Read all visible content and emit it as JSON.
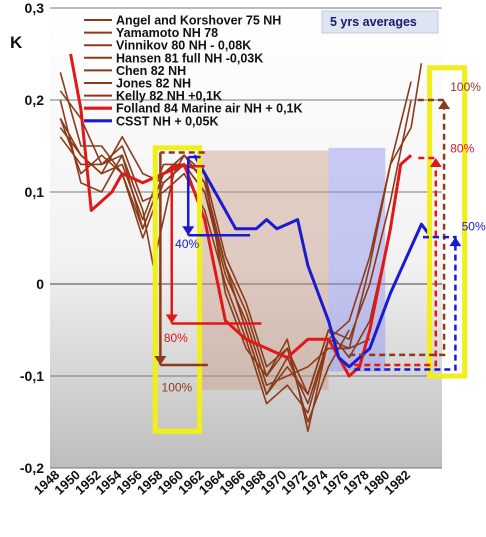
{
  "chart_data": {
    "type": "line",
    "ylabel": "K",
    "ylim": [
      -0.2,
      0.3
    ],
    "xlim": [
      1947,
      1985
    ],
    "y_ticks": [
      "0,3",
      "0,2",
      "0,1",
      "0",
      "-0,1",
      "-0,2"
    ],
    "x_ticks": [
      "1948",
      "1950",
      "1952",
      "1954",
      "1956",
      "1958",
      "1960",
      "1962",
      "1964",
      "1966",
      "1968",
      "1970",
      "1972",
      "1974",
      "1976",
      "1978",
      "1980",
      "1982"
    ],
    "note": "5 yrs averages",
    "grid": true,
    "legend_position": "top",
    "series": [
      {
        "name": "Angel and Korshover 75 NH",
        "color": "#8b3a1a",
        "points": [
          [
            1948,
            0.21
          ],
          [
            1950,
            0.18
          ],
          [
            1952,
            0.13
          ],
          [
            1954,
            0.14
          ],
          [
            1956,
            0.08
          ],
          [
            1957,
            0.02
          ],
          [
            1959,
            0.12
          ],
          [
            1960,
            0.14
          ],
          [
            1962,
            0.11
          ],
          [
            1964,
            0.02
          ],
          [
            1966,
            -0.05
          ],
          [
            1968,
            -0.12
          ],
          [
            1970,
            -0.08
          ],
          [
            1972,
            -0.13
          ],
          [
            1974,
            -0.06
          ]
        ]
      },
      {
        "name": "Yamamoto NH 78",
        "color": "#8b3a1a",
        "points": [
          [
            1948,
            0.17
          ],
          [
            1950,
            0.14
          ],
          [
            1952,
            0.12
          ],
          [
            1954,
            0.16
          ],
          [
            1956,
            0.12
          ],
          [
            1958,
            0.11
          ],
          [
            1960,
            0.13
          ],
          [
            1962,
            0.12
          ],
          [
            1964,
            -0.01
          ],
          [
            1966,
            -0.07
          ],
          [
            1968,
            -0.1
          ],
          [
            1970,
            -0.07
          ],
          [
            1972,
            -0.15
          ],
          [
            1974,
            -0.09
          ],
          [
            1976,
            -0.05
          ]
        ]
      },
      {
        "name": "Vinnikov 80 NH - 0,08K",
        "color": "#8b3a1a",
        "points": [
          [
            1948,
            0.23
          ],
          [
            1950,
            0.15
          ],
          [
            1952,
            0.15
          ],
          [
            1954,
            0.12
          ],
          [
            1956,
            0.05
          ],
          [
            1958,
            0.11
          ],
          [
            1960,
            0.13
          ],
          [
            1962,
            0.1
          ],
          [
            1964,
            0.01
          ],
          [
            1966,
            -0.04
          ],
          [
            1968,
            -0.11
          ],
          [
            1970,
            -0.1
          ],
          [
            1972,
            -0.09
          ],
          [
            1974,
            -0.07
          ],
          [
            1976,
            -0.07
          ],
          [
            1978,
            -0.06
          ]
        ]
      },
      {
        "name": "Hansen 81 full NH -0,03K",
        "color": "#8b3a1a",
        "points": [
          [
            1948,
            0.2
          ],
          [
            1950,
            0.11
          ],
          [
            1952,
            0.1
          ],
          [
            1954,
            0.14
          ],
          [
            1956,
            0.06
          ],
          [
            1958,
            0.12
          ],
          [
            1960,
            0.14
          ],
          [
            1962,
            0.12
          ],
          [
            1964,
            0.03
          ],
          [
            1966,
            -0.02
          ],
          [
            1968,
            -0.09
          ],
          [
            1970,
            -0.07
          ],
          [
            1972,
            -0.12
          ],
          [
            1974,
            -0.05
          ],
          [
            1976,
            -0.08
          ],
          [
            1978,
            -0.04
          ],
          [
            1980,
            0.06
          ]
        ]
      },
      {
        "name": "Chen 82 NH",
        "color": "#8b3a1a",
        "points": [
          [
            1948,
            0.16
          ],
          [
            1950,
            0.13
          ],
          [
            1952,
            0.13
          ],
          [
            1954,
            0.15
          ],
          [
            1956,
            0.09
          ],
          [
            1958,
            0.1
          ],
          [
            1960,
            0.12
          ],
          [
            1962,
            0.08
          ],
          [
            1964,
            0.0
          ],
          [
            1966,
            -0.06
          ],
          [
            1968,
            -0.13
          ],
          [
            1970,
            -0.11
          ],
          [
            1972,
            -0.14
          ],
          [
            1974,
            -0.06
          ],
          [
            1976,
            -0.07
          ],
          [
            1978,
            0.02
          ],
          [
            1980,
            0.13
          ],
          [
            1982,
            0.22
          ]
        ]
      },
      {
        "name": "Jones 82 NH",
        "color": "#8b3a1a",
        "points": [
          [
            1948,
            0.18
          ],
          [
            1950,
            0.14
          ],
          [
            1952,
            0.12
          ],
          [
            1954,
            0.13
          ],
          [
            1956,
            0.07
          ],
          [
            1958,
            0.13
          ],
          [
            1960,
            0.13
          ],
          [
            1962,
            0.1
          ],
          [
            1964,
            0.02
          ],
          [
            1966,
            -0.03
          ],
          [
            1968,
            -0.1
          ],
          [
            1970,
            -0.06
          ],
          [
            1972,
            -0.16
          ],
          [
            1974,
            -0.06
          ],
          [
            1976,
            -0.04
          ],
          [
            1978,
            0.03
          ],
          [
            1980,
            0.13
          ],
          [
            1982,
            0.17
          ],
          [
            1983,
            0.24
          ]
        ]
      },
      {
        "name": "Kelly 82 NH +0,1K",
        "color": "#8b3a1a",
        "points": [
          [
            1948,
            0.18
          ],
          [
            1950,
            0.12
          ],
          [
            1952,
            0.14
          ],
          [
            1954,
            0.12
          ],
          [
            1956,
            0.06
          ],
          [
            1958,
            0.12
          ],
          [
            1960,
            0.14
          ],
          [
            1962,
            0.11
          ],
          [
            1964,
            0.02
          ],
          [
            1966,
            -0.05
          ],
          [
            1968,
            -0.12
          ],
          [
            1970,
            -0.09
          ],
          [
            1972,
            -0.12
          ],
          [
            1974,
            -0.05
          ],
          [
            1976,
            -0.06
          ],
          [
            1978,
            0.0
          ],
          [
            1980,
            0.09
          ],
          [
            1982,
            0.2
          ]
        ]
      },
      {
        "name": "Folland 84 Marine air NH + 0,1K",
        "color": "#e01818",
        "points": [
          [
            1949,
            0.25
          ],
          [
            1950,
            0.19
          ],
          [
            1951,
            0.08
          ],
          [
            1952,
            0.09
          ],
          [
            1953,
            0.1
          ],
          [
            1954,
            0.12
          ],
          [
            1956,
            0.11
          ],
          [
            1958,
            0.12
          ],
          [
            1960,
            0.13
          ],
          [
            1962,
            0.07
          ],
          [
            1964,
            -0.04
          ],
          [
            1966,
            -0.06
          ],
          [
            1968,
            -0.07
          ],
          [
            1970,
            -0.08
          ],
          [
            1972,
            -0.06
          ],
          [
            1974,
            -0.06
          ],
          [
            1976,
            -0.1
          ],
          [
            1977,
            -0.09
          ],
          [
            1978,
            -0.05
          ],
          [
            1980,
            0.06
          ],
          [
            1981,
            0.13
          ],
          [
            1982,
            0.14
          ]
        ]
      },
      {
        "name": "CSST NH + 0,05K",
        "color": "#1a1ad0",
        "points": [
          [
            1961,
            0.14
          ],
          [
            1963,
            0.1
          ],
          [
            1965,
            0.06
          ],
          [
            1967,
            0.06
          ],
          [
            1968,
            0.07
          ],
          [
            1969,
            0.06
          ],
          [
            1971,
            0.07
          ],
          [
            1972,
            0.02
          ],
          [
            1974,
            -0.04
          ],
          [
            1975,
            -0.08
          ],
          [
            1976,
            -0.09
          ],
          [
            1978,
            -0.07
          ],
          [
            1980,
            -0.01
          ],
          [
            1982,
            0.04
          ],
          [
            1983,
            0.065
          ],
          [
            1984,
            0.05
          ]
        ]
      }
    ],
    "annotations": [
      {
        "text": "40%",
        "color": "#1a1ad0"
      },
      {
        "text": "80%",
        "color": "#e01818"
      },
      {
        "text": "100%",
        "color": "#8b3a1a"
      },
      {
        "text": "100%",
        "color": "#8b3a1a"
      },
      {
        "text": "80%",
        "color": "#e01818"
      },
      {
        "text": "50%",
        "color": "#1a1ad0"
      }
    ]
  }
}
